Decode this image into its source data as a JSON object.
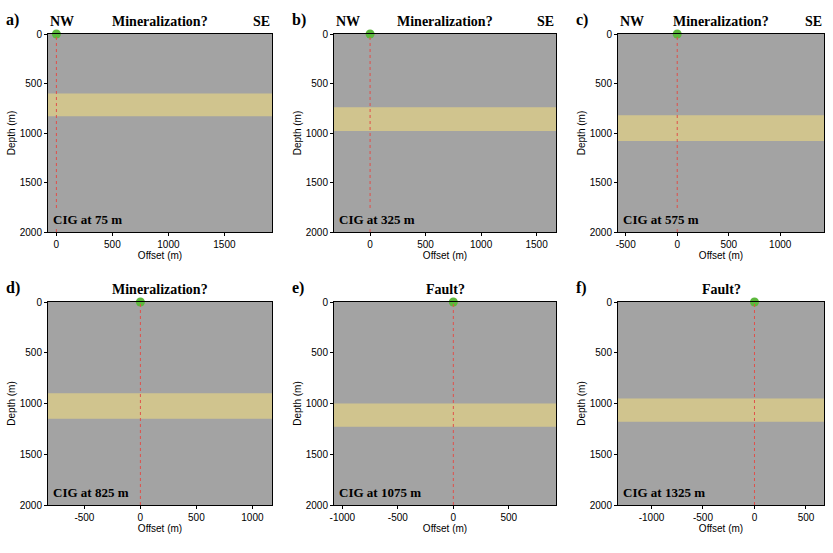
{
  "chart_data": [
    {
      "type": "scatter",
      "panel": "a)",
      "title": "Mineralization?",
      "direction_labels": [
        "NW",
        "SE"
      ],
      "caption": "CIG at 75 m",
      "xlabel": "Offset (m)",
      "ylabel": "Depth (m)",
      "x": [
        0
      ],
      "values": [
        0
      ],
      "color": "#5cb83c",
      "marker": "circle",
      "band": [
        600,
        830
      ],
      "xlim": [
        -75,
        1925
      ],
      "xticks": [
        0,
        500,
        1000,
        1500
      ],
      "ylim": [
        2000,
        0
      ],
      "yticks": [
        0,
        500,
        1000,
        1500,
        2000
      ]
    },
    {
      "type": "scatter",
      "panel": "b)",
      "title": "Mineralization?",
      "direction_labels": [
        "NW",
        "SE"
      ],
      "caption": "CIG at 325 m",
      "xlabel": "Offset (m)",
      "ylabel": "Depth (m)",
      "x": [
        0
      ],
      "values": [
        0
      ],
      "color": "#5cb83c",
      "marker": "circle",
      "band": [
        740,
        980
      ],
      "xlim": [
        -325,
        1675
      ],
      "xticks": [
        0,
        500,
        1000,
        1500
      ],
      "ylim": [
        2000,
        0
      ],
      "yticks": [
        0,
        500,
        1000,
        1500,
        2000
      ]
    },
    {
      "type": "scatter",
      "panel": "c)",
      "title": "Mineralization?",
      "direction_labels": [
        "NW",
        "SE"
      ],
      "caption": "CIG at 575 m",
      "xlabel": "Offset (m)",
      "ylabel": "Depth (m)",
      "x": [
        0
      ],
      "values": [
        0
      ],
      "color": "#5cb83c",
      "marker": "circle",
      "band": [
        820,
        1080
      ],
      "xlim": [
        -575,
        1425
      ],
      "xticks": [
        -500,
        0,
        500,
        1000
      ],
      "ylim": [
        2000,
        0
      ],
      "yticks": [
        0,
        500,
        1000,
        1500,
        2000
      ]
    },
    {
      "type": "scatter",
      "panel": "d)",
      "title": "Mineralization?",
      "caption": "CIG at 825 m",
      "xlabel": "Offset (m)",
      "ylabel": "Depth (m)",
      "x": [
        0
      ],
      "values": [
        0
      ],
      "color": "#5cb83c",
      "marker": "circle",
      "band": [
        900,
        1150
      ],
      "xlim": [
        -825,
        1175
      ],
      "xticks": [
        -500,
        0,
        500,
        1000
      ],
      "ylim": [
        2000,
        0
      ],
      "yticks": [
        0,
        500,
        1000,
        1500,
        2000
      ]
    },
    {
      "type": "scatter",
      "panel": "e)",
      "title": "Fault?",
      "caption": "CIG at 1075 m",
      "xlabel": "Offset (m)",
      "ylabel": "Depth (m)",
      "x": [
        0
      ],
      "values": [
        0
      ],
      "color": "#5cb83c",
      "marker": "circle",
      "band": [
        1000,
        1230
      ],
      "xlim": [
        -1075,
        925
      ],
      "xticks": [
        -1000,
        -500,
        0,
        500
      ],
      "ylim": [
        2000,
        0
      ],
      "yticks": [
        0,
        500,
        1000,
        1500,
        2000
      ]
    },
    {
      "type": "scatter",
      "panel": "f)",
      "title": "Fault?",
      "caption": "CIG at 1325 m",
      "xlabel": "Offset (m)",
      "ylabel": "Depth (m)",
      "x": [
        0
      ],
      "values": [
        0
      ],
      "color": "#5cb83c",
      "marker": "circle",
      "band": [
        950,
        1180
      ],
      "xlim": [
        -1325,
        675
      ],
      "xticks": [
        -1000,
        -500,
        0,
        500
      ],
      "ylim": [
        2000,
        0
      ],
      "yticks": [
        0,
        500,
        1000,
        1500,
        2000
      ]
    }
  ]
}
